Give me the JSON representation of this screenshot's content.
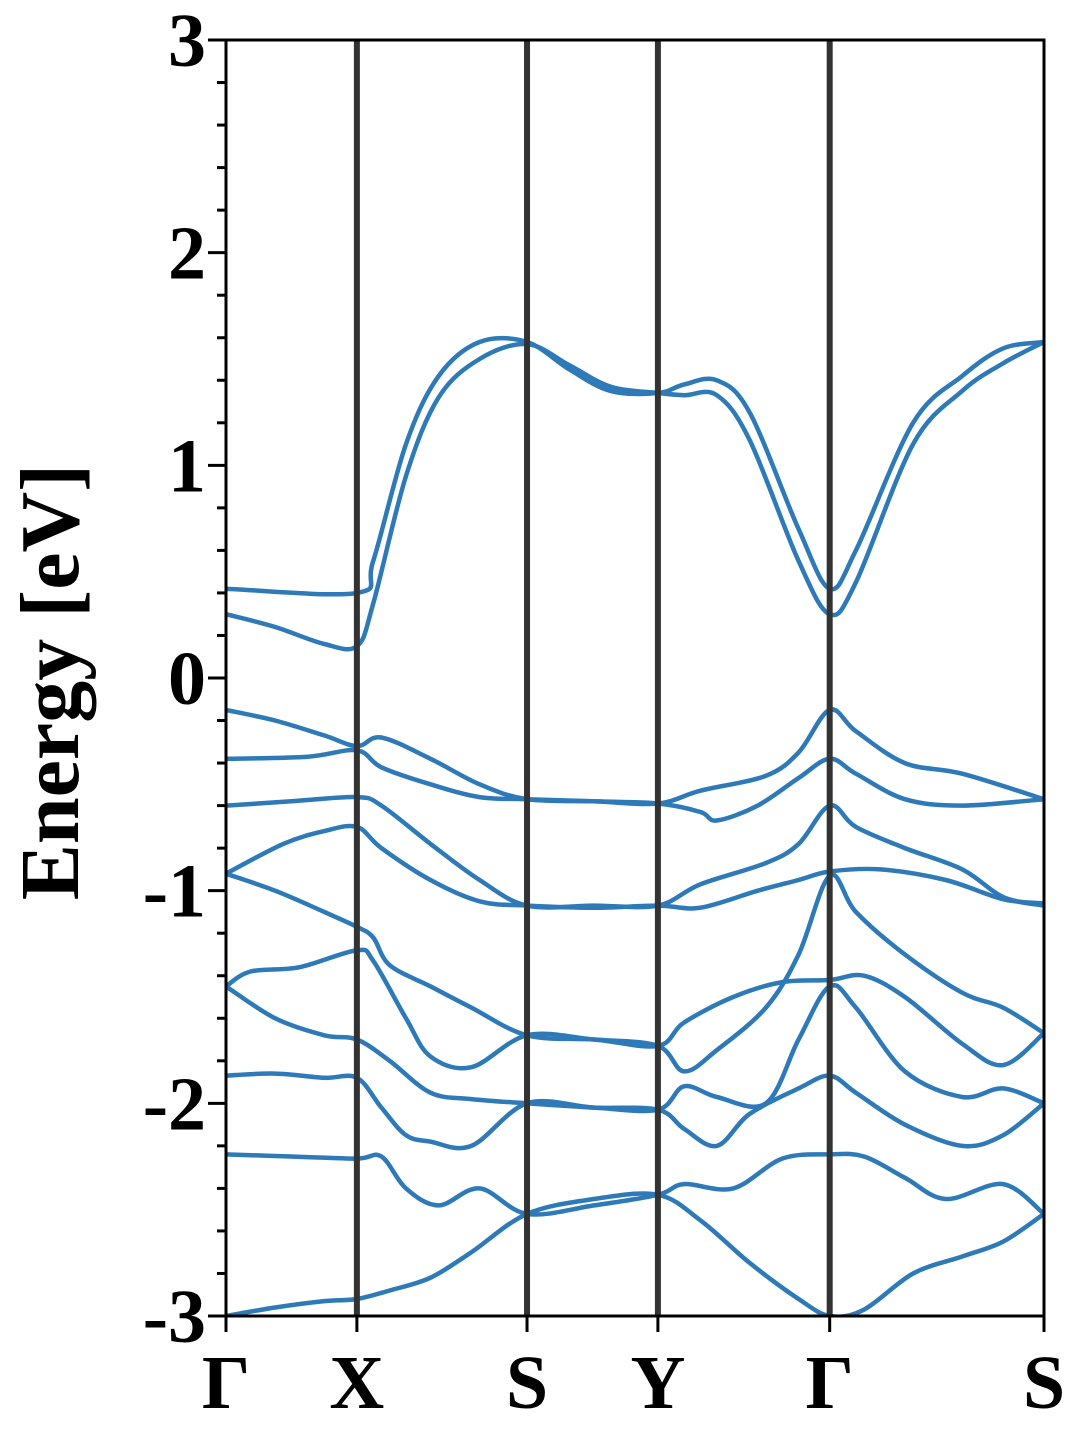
{
  "chart_data": {
    "type": "line",
    "ylabel": "Energy [eV]",
    "ylim": [
      -3,
      3
    ],
    "yticks": [
      -3,
      -2,
      -1,
      0,
      1,
      2,
      3
    ],
    "grid": false,
    "line_color": "#2e7ab8",
    "kpath_line_color": "#333333",
    "kpoints": [
      {
        "label": "Γ",
        "x": 0
      },
      {
        "label": "X",
        "x": 0.16
      },
      {
        "label": "S",
        "x": 0.368
      },
      {
        "label": "Y",
        "x": 0.528
      },
      {
        "label": "Γ",
        "x": 0.738
      },
      {
        "label": "S",
        "x": 1.0
      }
    ],
    "xlim": [
      0,
      1.0
    ],
    "series": [
      {
        "values": [
          [
            0,
            0.42
          ],
          [
            0.16,
            0.4
          ],
          [
            0.18,
            0.55
          ],
          [
            0.22,
            1.1
          ],
          [
            0.26,
            1.42
          ],
          [
            0.31,
            1.58
          ],
          [
            0.368,
            1.58
          ],
          [
            0.42,
            1.45
          ],
          [
            0.47,
            1.35
          ],
          [
            0.528,
            1.34
          ],
          [
            0.56,
            1.38
          ],
          [
            0.6,
            1.4
          ],
          [
            0.64,
            1.25
          ],
          [
            0.7,
            0.7
          ],
          [
            0.738,
            0.42
          ],
          [
            0.77,
            0.6
          ],
          [
            0.84,
            1.2
          ],
          [
            0.9,
            1.42
          ],
          [
            0.95,
            1.55
          ],
          [
            1.0,
            1.58
          ]
        ]
      },
      {
        "values": [
          [
            0,
            0.3
          ],
          [
            0.06,
            0.24
          ],
          [
            0.12,
            0.16
          ],
          [
            0.16,
            0.15
          ],
          [
            0.18,
            0.35
          ],
          [
            0.22,
            0.95
          ],
          [
            0.26,
            1.32
          ],
          [
            0.31,
            1.5
          ],
          [
            0.368,
            1.57
          ],
          [
            0.42,
            1.47
          ],
          [
            0.47,
            1.37
          ],
          [
            0.528,
            1.34
          ],
          [
            0.56,
            1.33
          ],
          [
            0.6,
            1.33
          ],
          [
            0.64,
            1.12
          ],
          [
            0.7,
            0.55
          ],
          [
            0.738,
            0.3
          ],
          [
            0.77,
            0.45
          ],
          [
            0.84,
            1.1
          ],
          [
            0.9,
            1.35
          ],
          [
            0.95,
            1.48
          ],
          [
            1.0,
            1.58
          ]
        ]
      },
      {
        "values": [
          [
            0,
            -0.15
          ],
          [
            0.06,
            -0.2
          ],
          [
            0.12,
            -0.27
          ],
          [
            0.16,
            -0.32
          ],
          [
            0.19,
            -0.28
          ],
          [
            0.25,
            -0.38
          ],
          [
            0.31,
            -0.5
          ],
          [
            0.368,
            -0.57
          ],
          [
            0.45,
            -0.58
          ],
          [
            0.528,
            -0.59
          ],
          [
            0.58,
            -0.53
          ],
          [
            0.66,
            -0.46
          ],
          [
            0.7,
            -0.35
          ],
          [
            0.738,
            -0.15
          ],
          [
            0.77,
            -0.25
          ],
          [
            0.83,
            -0.4
          ],
          [
            0.9,
            -0.45
          ],
          [
            1.0,
            -0.57
          ]
        ]
      },
      {
        "values": [
          [
            0,
            -0.38
          ],
          [
            0.1,
            -0.37
          ],
          [
            0.16,
            -0.34
          ],
          [
            0.19,
            -0.42
          ],
          [
            0.25,
            -0.5
          ],
          [
            0.31,
            -0.56
          ],
          [
            0.368,
            -0.57
          ],
          [
            0.45,
            -0.58
          ],
          [
            0.528,
            -0.59
          ],
          [
            0.58,
            -0.63
          ],
          [
            0.6,
            -0.67
          ],
          [
            0.65,
            -0.6
          ],
          [
            0.7,
            -0.47
          ],
          [
            0.738,
            -0.38
          ],
          [
            0.77,
            -0.45
          ],
          [
            0.83,
            -0.57
          ],
          [
            0.9,
            -0.6
          ],
          [
            1.0,
            -0.57
          ]
        ]
      },
      {
        "values": [
          [
            0,
            -0.6
          ],
          [
            0.08,
            -0.58
          ],
          [
            0.16,
            -0.56
          ],
          [
            0.19,
            -0.6
          ],
          [
            0.25,
            -0.78
          ],
          [
            0.31,
            -0.95
          ],
          [
            0.368,
            -1.07
          ],
          [
            0.45,
            -1.07
          ],
          [
            0.528,
            -1.07
          ],
          [
            0.58,
            -0.97
          ],
          [
            0.66,
            -0.87
          ],
          [
            0.7,
            -0.78
          ],
          [
            0.738,
            -0.6
          ],
          [
            0.77,
            -0.7
          ],
          [
            0.83,
            -0.8
          ],
          [
            0.9,
            -0.9
          ],
          [
            0.95,
            -1.03
          ],
          [
            1.0,
            -1.07
          ]
        ]
      },
      {
        "values": [
          [
            0,
            -0.92
          ],
          [
            0.07,
            -0.78
          ],
          [
            0.12,
            -0.72
          ],
          [
            0.16,
            -0.7
          ],
          [
            0.19,
            -0.8
          ],
          [
            0.25,
            -0.95
          ],
          [
            0.31,
            -1.05
          ],
          [
            0.368,
            -1.07
          ],
          [
            0.45,
            -1.08
          ],
          [
            0.528,
            -1.07
          ],
          [
            0.58,
            -1.08
          ],
          [
            0.65,
            -1.0
          ],
          [
            0.7,
            -0.95
          ],
          [
            0.738,
            -0.91
          ],
          [
            0.8,
            -0.9
          ],
          [
            0.88,
            -0.95
          ],
          [
            0.95,
            -1.04
          ],
          [
            1.0,
            -1.06
          ]
        ]
      },
      {
        "values": [
          [
            0,
            -0.92
          ],
          [
            0.06,
            -1.0
          ],
          [
            0.12,
            -1.1
          ],
          [
            0.16,
            -1.17
          ],
          [
            0.18,
            -1.22
          ],
          [
            0.2,
            -1.35
          ],
          [
            0.25,
            -1.45
          ],
          [
            0.3,
            -1.55
          ],
          [
            0.368,
            -1.68
          ],
          [
            0.45,
            -1.7
          ],
          [
            0.528,
            -1.73
          ],
          [
            0.56,
            -1.85
          ],
          [
            0.6,
            -1.75
          ],
          [
            0.66,
            -1.55
          ],
          [
            0.7,
            -1.3
          ],
          [
            0.738,
            -0.93
          ],
          [
            0.77,
            -1.1
          ],
          [
            0.83,
            -1.3
          ],
          [
            0.9,
            -1.48
          ],
          [
            0.95,
            -1.55
          ],
          [
            1.0,
            -1.67
          ]
        ]
      },
      {
        "values": [
          [
            0,
            -1.45
          ],
          [
            0.03,
            -1.38
          ],
          [
            0.09,
            -1.36
          ],
          [
            0.16,
            -1.28
          ],
          [
            0.18,
            -1.33
          ],
          [
            0.22,
            -1.6
          ],
          [
            0.25,
            -1.78
          ],
          [
            0.3,
            -1.83
          ],
          [
            0.368,
            -1.68
          ],
          [
            0.45,
            -1.7
          ],
          [
            0.528,
            -1.73
          ],
          [
            0.56,
            -1.62
          ],
          [
            0.62,
            -1.5
          ],
          [
            0.68,
            -1.43
          ],
          [
            0.738,
            -1.42
          ],
          [
            0.78,
            -1.4
          ],
          [
            0.83,
            -1.5
          ],
          [
            0.9,
            -1.72
          ],
          [
            0.95,
            -1.82
          ],
          [
            1.0,
            -1.67
          ]
        ]
      },
      {
        "values": [
          [
            0,
            -1.45
          ],
          [
            0.06,
            -1.6
          ],
          [
            0.12,
            -1.68
          ],
          [
            0.16,
            -1.7
          ],
          [
            0.2,
            -1.8
          ],
          [
            0.25,
            -1.95
          ],
          [
            0.3,
            -1.98
          ],
          [
            0.368,
            -2.0
          ],
          [
            0.45,
            -2.02
          ],
          [
            0.528,
            -2.03
          ],
          [
            0.56,
            -1.92
          ],
          [
            0.6,
            -1.97
          ],
          [
            0.66,
            -2.0
          ],
          [
            0.7,
            -1.7
          ],
          [
            0.738,
            -1.45
          ],
          [
            0.77,
            -1.55
          ],
          [
            0.83,
            -1.85
          ],
          [
            0.9,
            -1.97
          ],
          [
            0.95,
            -1.93
          ],
          [
            1.0,
            -2.0
          ]
        ]
      },
      {
        "values": [
          [
            0,
            -1.87
          ],
          [
            0.06,
            -1.86
          ],
          [
            0.12,
            -1.88
          ],
          [
            0.16,
            -1.88
          ],
          [
            0.19,
            -2.02
          ],
          [
            0.22,
            -2.15
          ],
          [
            0.25,
            -2.18
          ],
          [
            0.3,
            -2.2
          ],
          [
            0.368,
            -2.0
          ],
          [
            0.45,
            -2.02
          ],
          [
            0.528,
            -2.03
          ],
          [
            0.56,
            -2.12
          ],
          [
            0.6,
            -2.2
          ],
          [
            0.64,
            -2.05
          ],
          [
            0.7,
            -1.93
          ],
          [
            0.738,
            -1.87
          ],
          [
            0.77,
            -1.95
          ],
          [
            0.83,
            -2.1
          ],
          [
            0.9,
            -2.2
          ],
          [
            0.95,
            -2.15
          ],
          [
            1.0,
            -2.0
          ]
        ]
      },
      {
        "values": [
          [
            0,
            -2.24
          ],
          [
            0.08,
            -2.25
          ],
          [
            0.16,
            -2.26
          ],
          [
            0.19,
            -2.25
          ],
          [
            0.22,
            -2.4
          ],
          [
            0.26,
            -2.48
          ],
          [
            0.31,
            -2.4
          ],
          [
            0.368,
            -2.52
          ],
          [
            0.45,
            -2.48
          ],
          [
            0.528,
            -2.43
          ],
          [
            0.56,
            -2.38
          ],
          [
            0.62,
            -2.4
          ],
          [
            0.68,
            -2.26
          ],
          [
            0.738,
            -2.24
          ],
          [
            0.78,
            -2.25
          ],
          [
            0.83,
            -2.35
          ],
          [
            0.88,
            -2.45
          ],
          [
            0.95,
            -2.38
          ],
          [
            1.0,
            -2.52
          ]
        ]
      },
      {
        "values": [
          [
            0,
            -3.0
          ],
          [
            0.06,
            -2.96
          ],
          [
            0.12,
            -2.93
          ],
          [
            0.16,
            -2.92
          ],
          [
            0.2,
            -2.88
          ],
          [
            0.25,
            -2.82
          ],
          [
            0.3,
            -2.7
          ],
          [
            0.368,
            -2.52
          ],
          [
            0.45,
            -2.45
          ],
          [
            0.528,
            -2.43
          ],
          [
            0.58,
            -2.55
          ],
          [
            0.64,
            -2.75
          ],
          [
            0.7,
            -2.92
          ],
          [
            0.738,
            -3.0
          ],
          [
            0.78,
            -2.97
          ],
          [
            0.84,
            -2.8
          ],
          [
            0.9,
            -2.72
          ],
          [
            0.95,
            -2.65
          ],
          [
            1.0,
            -2.52
          ]
        ]
      }
    ]
  }
}
